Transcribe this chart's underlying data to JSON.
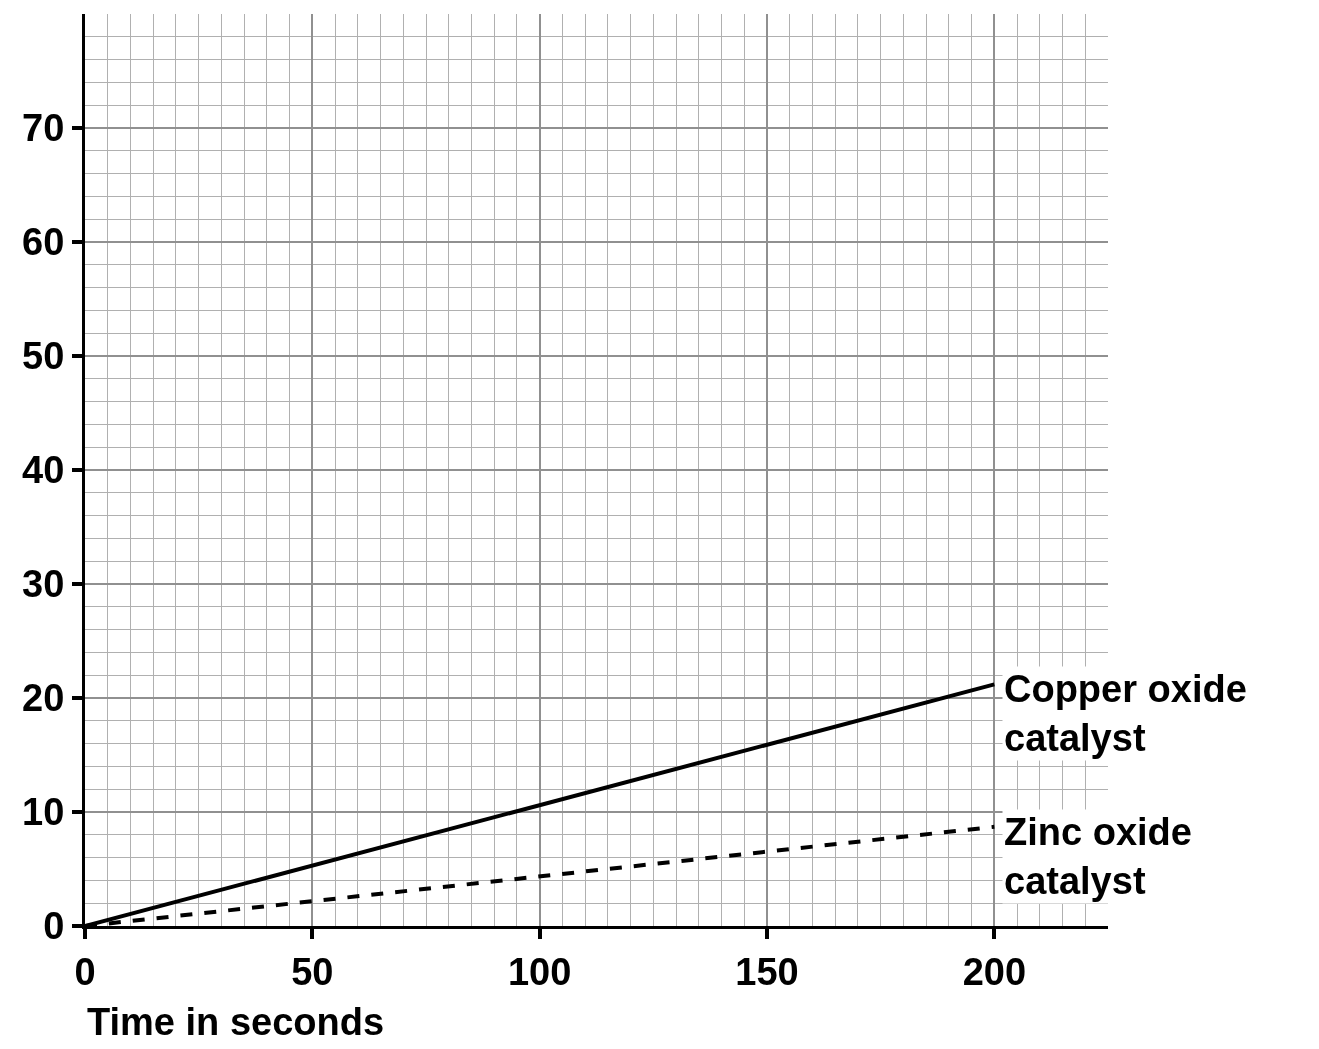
{
  "chart_data": {
    "type": "line",
    "xlabel": "Time in seconds",
    "x": [
      0,
      200
    ],
    "series": [
      {
        "name": "Copper oxide catalyst",
        "color": "#000000",
        "values": [
          0,
          21.2
        ],
        "line_style": "solid"
      },
      {
        "name": "Zinc oxide catalyst",
        "color": "#000000",
        "values": [
          0,
          8.7
        ],
        "line_style": "dashed"
      }
    ],
    "xlim": [
      0,
      225
    ],
    "xticks": [
      0,
      50,
      100,
      150,
      200
    ],
    "ylim": [
      0,
      80
    ],
    "yticks": [
      0,
      10,
      20,
      30,
      40,
      50,
      60,
      70
    ],
    "grid": true,
    "legend": false
  }
}
